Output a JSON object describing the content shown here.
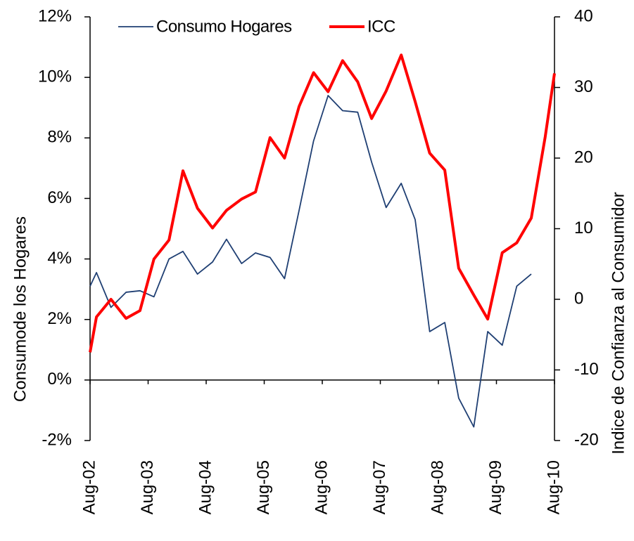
{
  "chart_data": {
    "type": "line",
    "y_label": "Consumode los Hogares",
    "y2_label": "Indice de Confianza al Consumidor",
    "x": [
      2002.58,
      2002.69,
      2002.94,
      2003.2,
      2003.44,
      2003.68,
      2003.94,
      2004.18,
      2004.43,
      2004.69,
      2004.93,
      2005.19,
      2005.43,
      2005.68,
      2005.93,
      2006.18,
      2006.43,
      2006.68,
      2006.93,
      2007.19,
      2007.43,
      2007.68,
      2007.94,
      2008.18,
      2008.43,
      2008.69,
      2008.93,
      2009.19,
      2009.43,
      2009.68,
      2009.93,
      2010.18,
      2010.42,
      2010.58
    ],
    "xlim": [
      2002.58,
      2010.58
    ],
    "xticks": [
      {
        "value": 2002.58,
        "label": "Aug-02"
      },
      {
        "value": 2003.58,
        "label": "Aug-03"
      },
      {
        "value": 2004.58,
        "label": "Aug-04"
      },
      {
        "value": 2005.58,
        "label": "Aug-05"
      },
      {
        "value": 2006.58,
        "label": "Aug-06"
      },
      {
        "value": 2007.58,
        "label": "Aug-07"
      },
      {
        "value": 2008.58,
        "label": "Aug-08"
      },
      {
        "value": 2009.58,
        "label": "Aug-09"
      },
      {
        "value": 2010.58,
        "label": "Aug-10"
      }
    ],
    "ylim": [
      -2,
      12
    ],
    "yticks": [
      {
        "value": -2,
        "label": "-2%"
      },
      {
        "value": 0,
        "label": "0%"
      },
      {
        "value": 2,
        "label": "2%"
      },
      {
        "value": 4,
        "label": "4%"
      },
      {
        "value": 6,
        "label": "6%"
      },
      {
        "value": 8,
        "label": "8%"
      },
      {
        "value": 10,
        "label": "10%"
      },
      {
        "value": 12,
        "label": "12%"
      }
    ],
    "y2lim": [
      -20,
      40
    ],
    "y2ticks": [
      -20,
      -10,
      0,
      10,
      20,
      30,
      40
    ],
    "series": [
      {
        "name": "Consumo Hogares",
        "color": "#1f3f73",
        "values": [
          3.1,
          3.55,
          2.4,
          2.9,
          2.95,
          2.75,
          4.0,
          4.25,
          3.5,
          3.9,
          4.65,
          3.85,
          4.2,
          4.05,
          3.35,
          5.6,
          7.9,
          9.4,
          8.9,
          8.85,
          7.2,
          5.7,
          6.5,
          5.3,
          1.6,
          1.9,
          -0.6,
          -1.55,
          1.6,
          1.15,
          3.1,
          3.5,
          null,
          null
        ]
      },
      {
        "name": "ICC",
        "color": "#ff0000",
        "axis": "y2",
        "values": [
          -7.5,
          -2.5,
          0,
          -2.7,
          -1.6,
          5.7,
          8.4,
          18.2,
          12.9,
          10.1,
          12.6,
          14.2,
          15.2,
          22.9,
          20,
          27.3,
          32.1,
          29.4,
          33.8,
          30.8,
          25.6,
          29.5,
          34.6,
          28,
          20.7,
          18.3,
          4.4,
          0.6,
          -2.8,
          6.6,
          8,
          11.5,
          23,
          32
        ]
      }
    ]
  }
}
